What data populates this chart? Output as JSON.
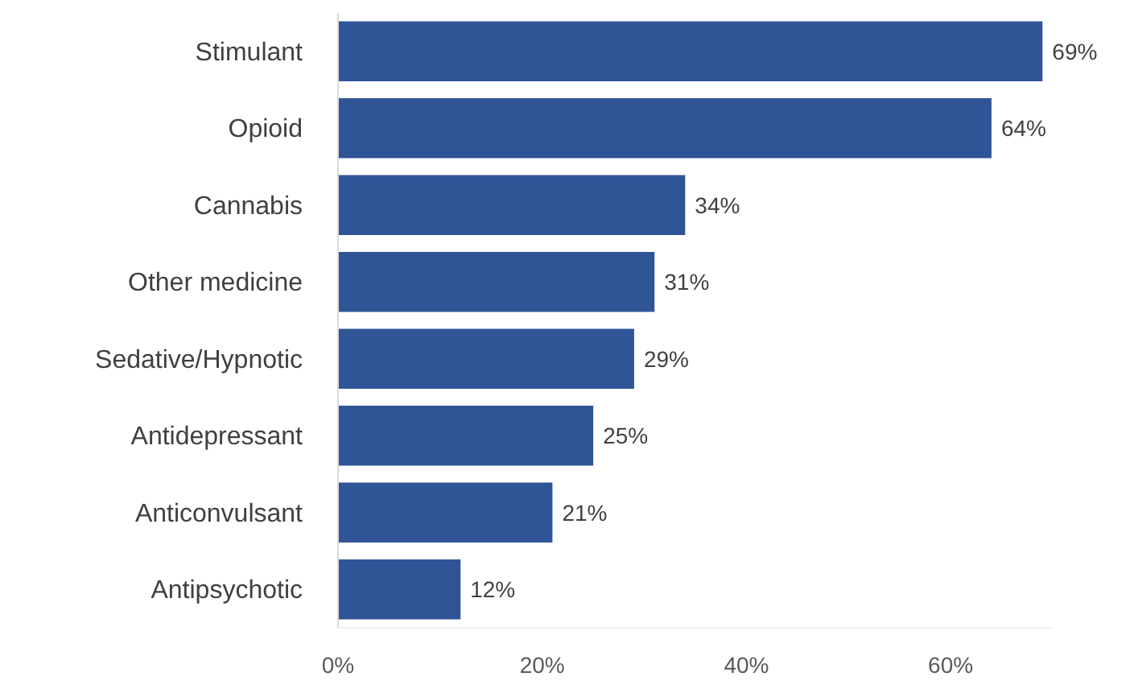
{
  "chart_data": {
    "type": "bar",
    "orientation": "horizontal",
    "categories": [
      "Stimulant",
      "Opioid",
      "Cannabis",
      "Other medicine",
      "Sedative/Hypnotic",
      "Antidepressant",
      "Anticonvulsant",
      "Antipsychotic"
    ],
    "values": [
      69,
      64,
      34,
      31,
      29,
      25,
      21,
      12
    ],
    "value_labels": [
      "69%",
      "64%",
      "34%",
      "31%",
      "29%",
      "25%",
      "21%",
      "12%"
    ],
    "color": "#2f5597",
    "xlim": [
      0,
      70
    ],
    "xticks": [
      {
        "value": 0,
        "label": "0%"
      },
      {
        "value": 20,
        "label": "20%"
      },
      {
        "value": 40,
        "label": "40%"
      },
      {
        "value": 60,
        "label": "60%"
      }
    ],
    "grid": false
  }
}
